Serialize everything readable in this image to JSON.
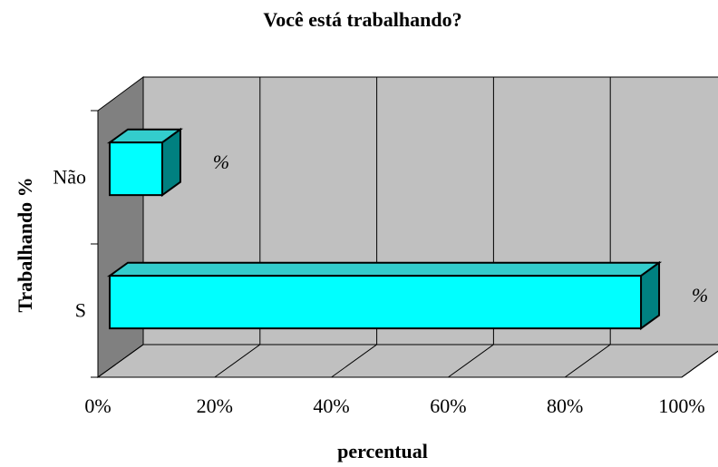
{
  "chart_data": {
    "type": "bar3d_horizontal",
    "title": "Você está trabalhando?",
    "y_label": "Trabalhando %",
    "x_label": "percentual",
    "categories": [
      "Não",
      "S"
    ],
    "values": [
      9,
      91
    ],
    "value_labels": [
      "%",
      "%"
    ],
    "color": "#00ffff",
    "xlim": [
      0,
      100
    ],
    "xticks": [
      {
        "value": 0,
        "label": "0%"
      },
      {
        "value": 20,
        "label": "20%"
      },
      {
        "value": 40,
        "label": "40%"
      },
      {
        "value": 60,
        "label": "60%"
      },
      {
        "value": 80,
        "label": "80%"
      },
      {
        "value": 100,
        "label": "100%"
      }
    ],
    "grid": true
  }
}
